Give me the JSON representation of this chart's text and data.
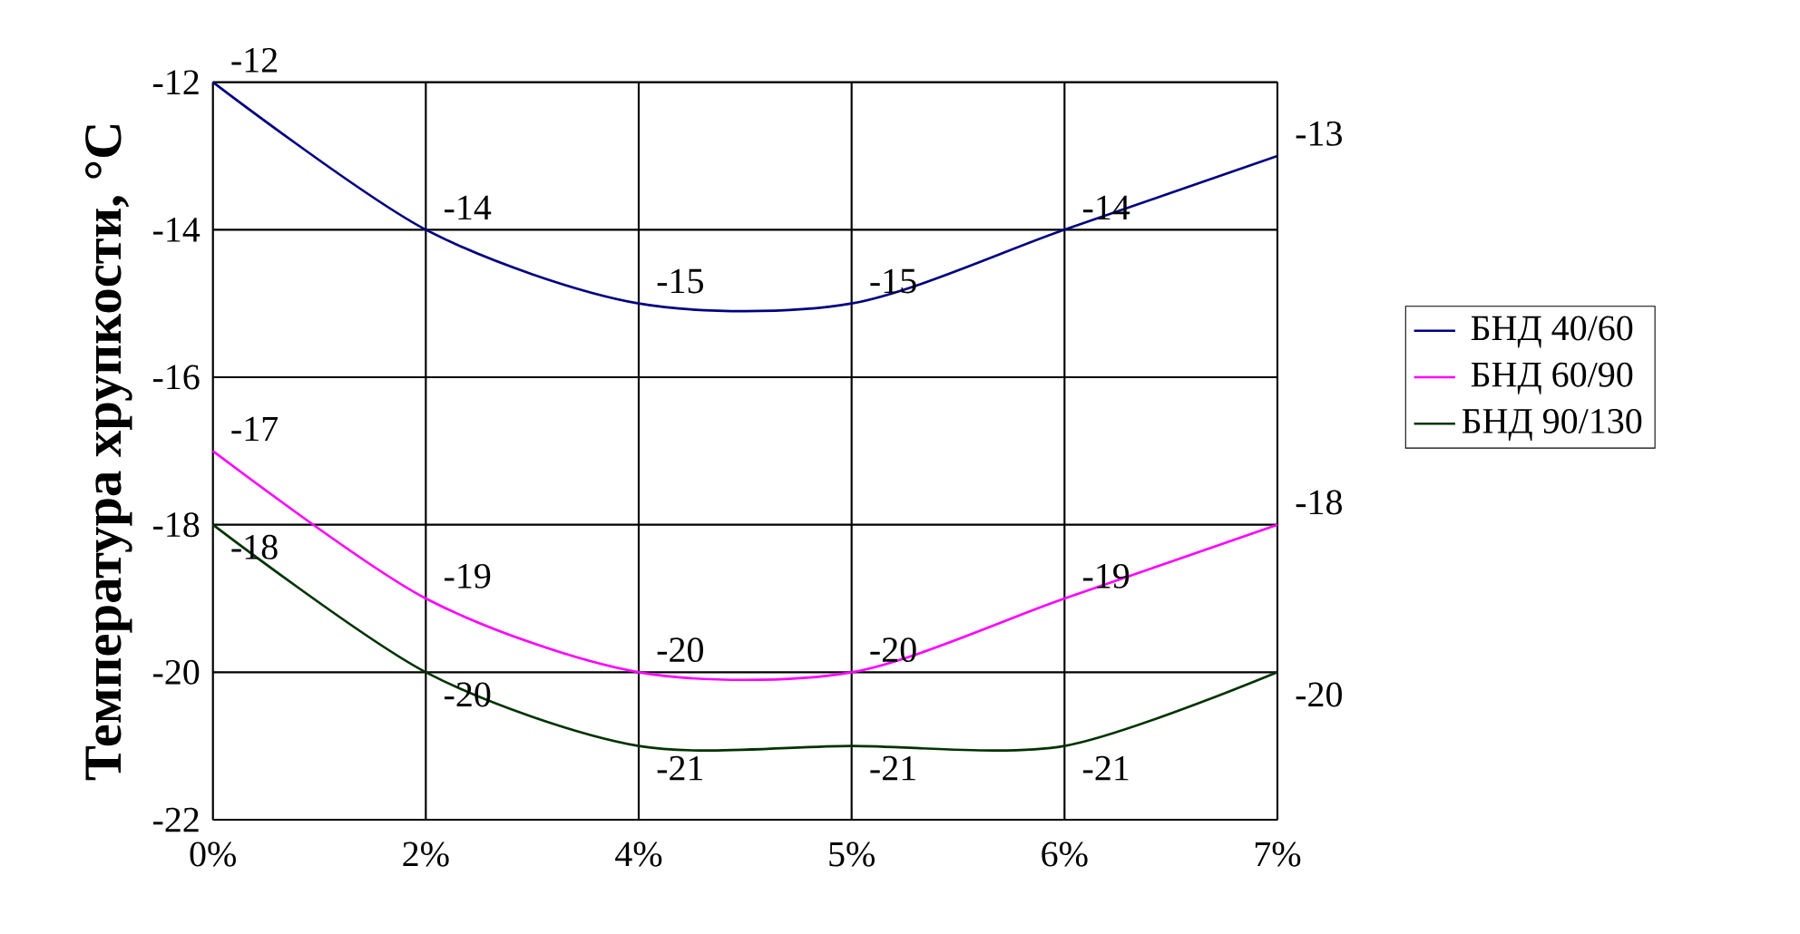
{
  "chart_data": {
    "type": "line",
    "ylabel": "Температура хрупкости, °С",
    "categories": [
      "0%",
      "2%",
      "4%",
      "5%",
      "6%",
      "7%"
    ],
    "series": [
      {
        "name": "БНД 40/60",
        "color": "#000080",
        "values": [
          -12,
          -14,
          -15,
          -15,
          -14,
          -13
        ]
      },
      {
        "name": "БНД 60/90",
        "color": "#ff00ff",
        "values": [
          -17,
          -19,
          -20,
          -20,
          -19,
          -18
        ]
      },
      {
        "name": "БНД 90/130",
        "color": "#003300",
        "values": [
          -18,
          -20,
          -21,
          -21,
          -21,
          -20
        ]
      }
    ],
    "ylim": [
      -22,
      -12
    ],
    "yticks": [
      -22,
      -20,
      -18,
      -16,
      -14,
      -12
    ],
    "grid": true,
    "legend": "right",
    "data_labels": true,
    "marker": "none",
    "line_style": "solid"
  }
}
